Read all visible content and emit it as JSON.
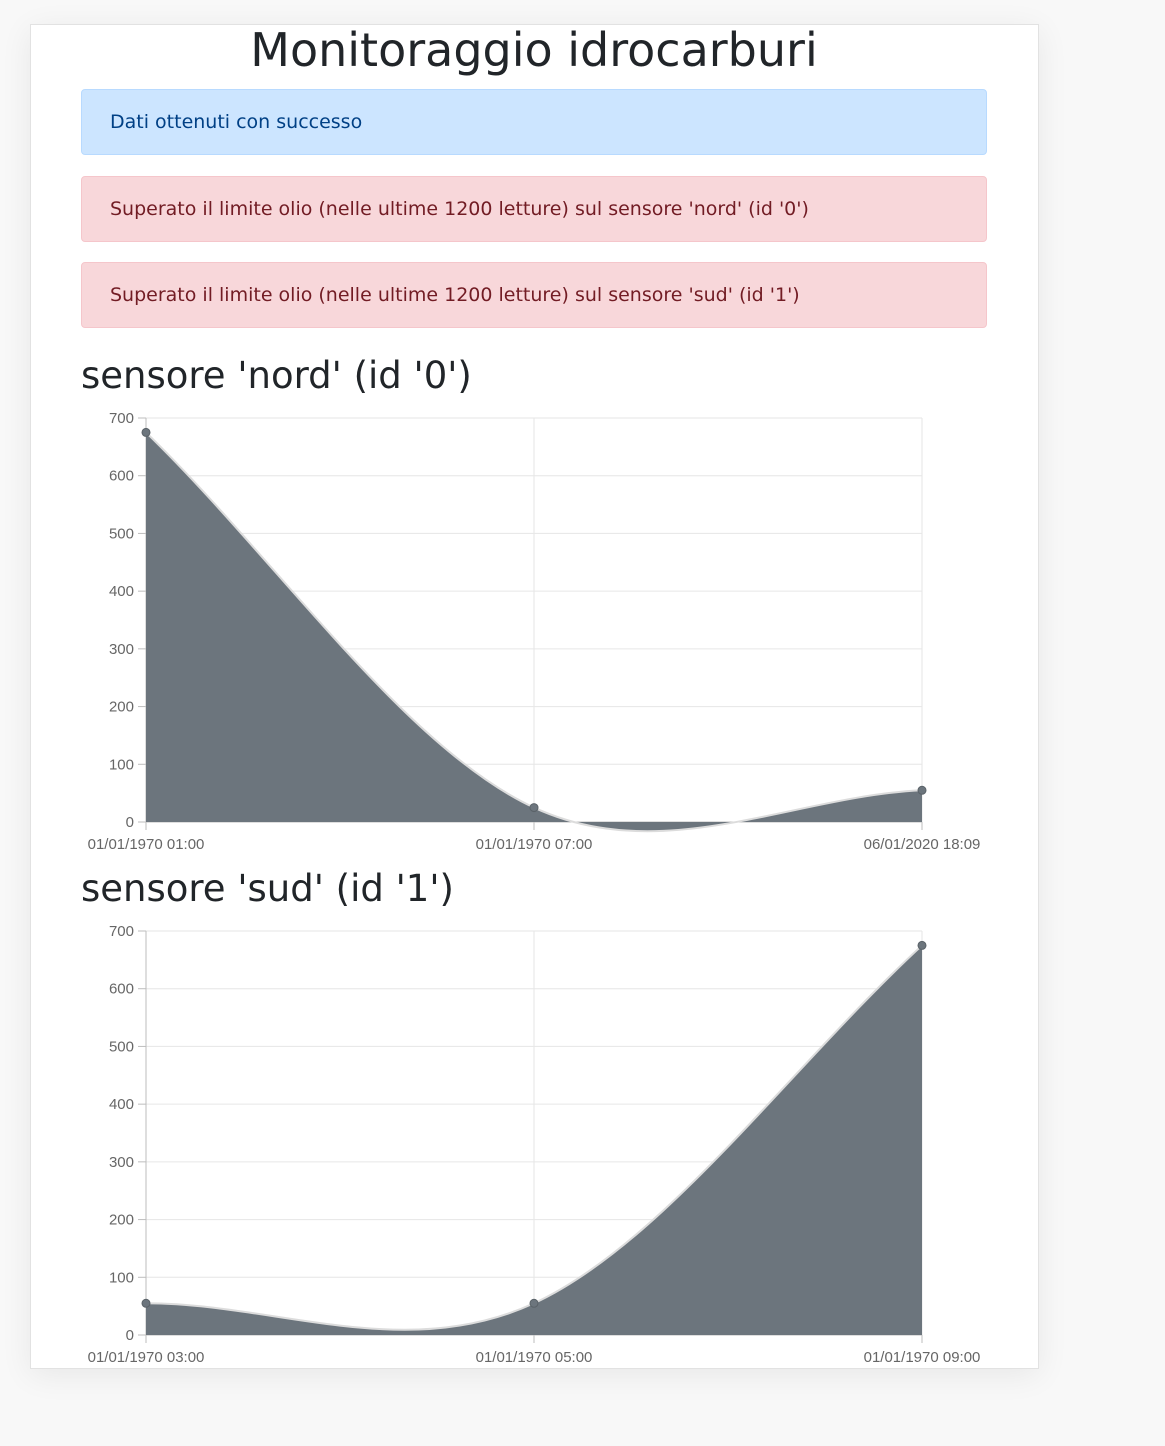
{
  "page": {
    "title": "Monitoraggio idrocarburi"
  },
  "alerts": [
    {
      "type": "info",
      "text": "Dati ottenuti con successo"
    },
    {
      "type": "danger",
      "text": "Superato il limite olio (nelle ultime 1200 letture) sul sensore 'nord' (id '0')"
    },
    {
      "type": "danger",
      "text": "Superato il limite olio (nelle ultime 1200 letture) sul sensore 'sud' (id '1')"
    }
  ],
  "sensors": [
    {
      "heading": "sensore 'nord' (id '0')"
    },
    {
      "heading": "sensore 'sud' (id '1')"
    }
  ],
  "colors": {
    "area_fill": "#6c757d",
    "alert_info_bg": "#cce5ff",
    "alert_danger_bg": "#f8d7da"
  },
  "chart_data": [
    {
      "type": "area",
      "x": [
        "01/01/1970 01:00",
        "01/01/1970 07:00",
        "06/01/2020 18:09"
      ],
      "values": [
        675,
        25,
        55
      ],
      "yticks": [
        "0",
        "100",
        "200",
        "300",
        "400",
        "500",
        "600",
        "700"
      ],
      "ylim": [
        0,
        700
      ],
      "grid": true
    },
    {
      "type": "area",
      "x": [
        "01/01/1970 03:00",
        "01/01/1970 05:00",
        "01/01/1970 09:00"
      ],
      "values": [
        55,
        55,
        675
      ],
      "yticks": [
        "0",
        "100",
        "200",
        "300",
        "400",
        "500",
        "600",
        "700"
      ],
      "ylim": [
        0,
        700
      ],
      "grid": true
    }
  ]
}
